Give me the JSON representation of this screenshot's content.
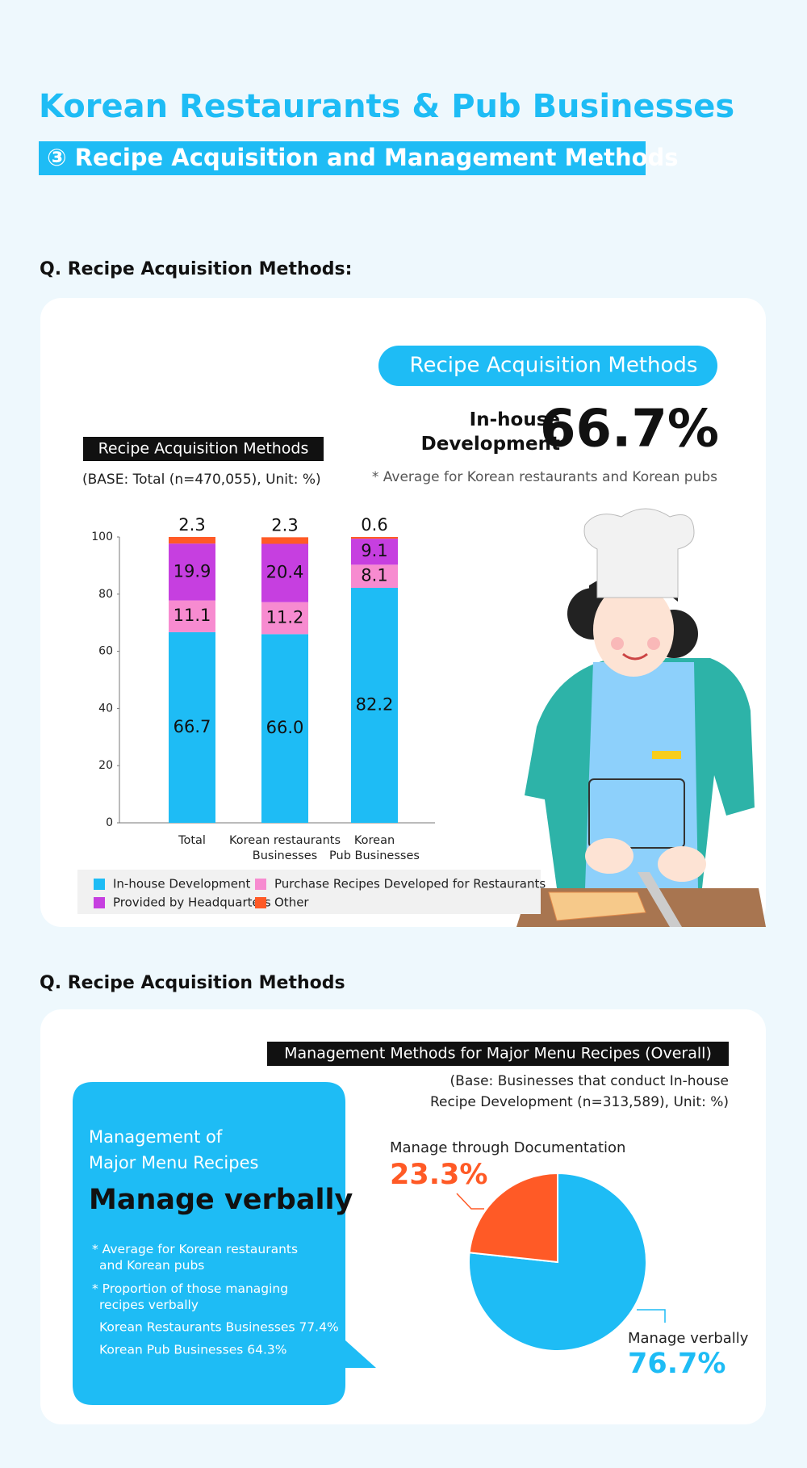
{
  "header": {
    "title": "Korean Restaurants & Pub Businesses",
    "subtitle": "③ Recipe Acquisition and Management Methods"
  },
  "section1": {
    "question": "Q. Recipe Acquisition Methods:",
    "badge": "Recipe Acquisition Methods",
    "highlight_label": "In-house\nDevelopment",
    "highlight_value": "66.7%",
    "note": "* Average for Korean restaurants and Korean pubs"
  },
  "section2": {
    "question": "Q. Recipe Acquisition Methods",
    "callout_heading": "Management of\nMajor Menu Recipes",
    "callout_title": "Manage verbally",
    "notes": [
      "* Average for Korean restaurants\nand Korean pubs",
      "* Proportion of those managing\nrecipes verbally",
      "Korean Restaurants Businesses 77.4%",
      "Korean Pub Businesses 64.3%"
    ]
  },
  "chart_data": [
    {
      "type": "bar",
      "stacked": true,
      "title": "Recipe Acquisition Methods",
      "subtitle": "(BASE: Total (n=470,055), Unit: %)",
      "categories": [
        "Total",
        "Korean restaurants\nBusinesses",
        "Korean\nPub Businesses"
      ],
      "series": [
        {
          "name": "In-house Development",
          "color": "#1ebcf5",
          "values": [
            66.7,
            66.0,
            82.2
          ],
          "value_labels": [
            "66.7",
            "66.0",
            "82.2"
          ]
        },
        {
          "name": "Purchase Recipes Developed for Restaurants",
          "color": "#f78bd0",
          "values": [
            11.1,
            11.2,
            8.1
          ]
        },
        {
          "name": "Provided by Headquarters",
          "color": "#c63fe0",
          "values": [
            19.9,
            20.4,
            9.1
          ]
        },
        {
          "name": "Other",
          "color": "#ff5a26",
          "values": [
            2.3,
            2.3,
            0.6
          ]
        }
      ],
      "ylim": [
        0,
        100
      ],
      "yticks": [
        0,
        20,
        40,
        60,
        80,
        100
      ]
    },
    {
      "type": "pie",
      "title": "Management Methods for Major Menu Recipes (Overall)",
      "subtitle": "(Base: Businesses that conduct In-house\nRecipe Development (n=313,589), Unit: %)",
      "categories": [
        "Manage verbally",
        "Manage through Documentation"
      ],
      "values": [
        76.7,
        23.3
      ],
      "value_labels": [
        "76.7%",
        "23.3%"
      ],
      "colors": [
        "#1ebcf5",
        "#ff5a26"
      ]
    }
  ]
}
